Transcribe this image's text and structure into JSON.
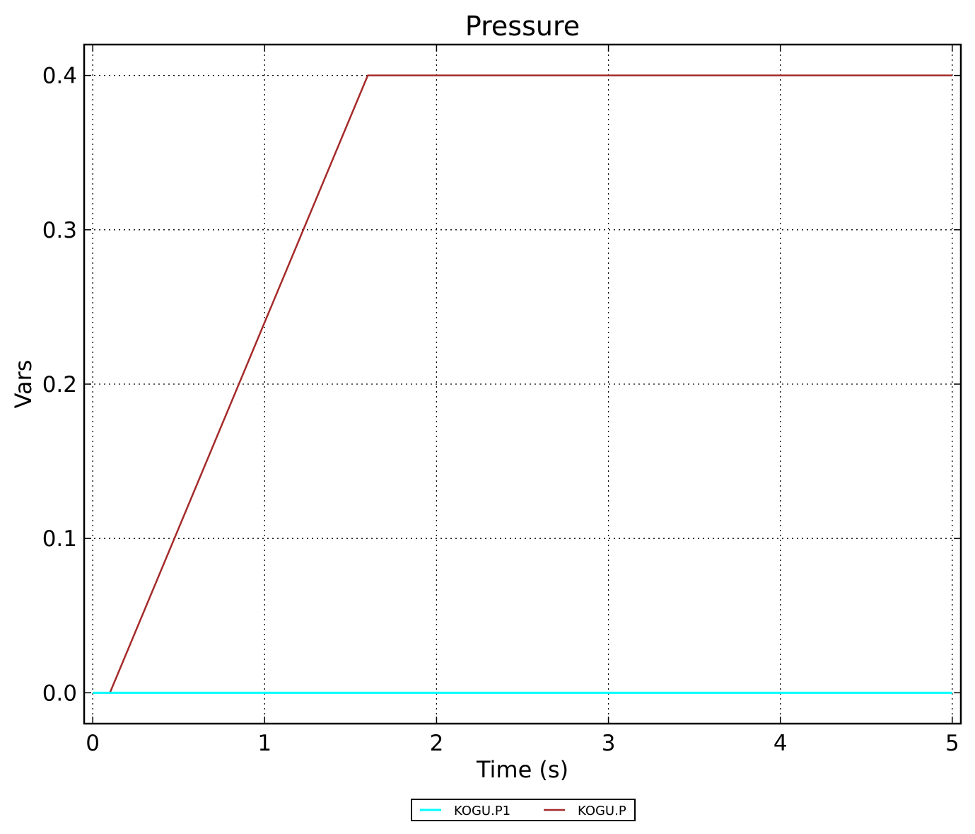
{
  "chart_data": {
    "type": "line",
    "title": "Pressure",
    "xlabel": "Time (s)",
    "ylabel": "Vars",
    "xlim": [
      -0.05,
      5.05
    ],
    "ylim": [
      -0.02,
      0.42
    ],
    "xticks": [
      0,
      1,
      2,
      3,
      4,
      5
    ],
    "xtick_labels": [
      "0",
      "1",
      "2",
      "3",
      "4",
      "5"
    ],
    "yticks": [
      0.0,
      0.1,
      0.2,
      0.3,
      0.4
    ],
    "ytick_labels": [
      "0.0",
      "0.1",
      "0.2",
      "0.3",
      "0.4"
    ],
    "grid": true,
    "legend_position": "bottom-center",
    "series": [
      {
        "name": "KOGU.P1",
        "color": "#00ffff",
        "x": [
          0,
          5
        ],
        "y": [
          0,
          0
        ]
      },
      {
        "name": "KOGU.P",
        "color": "#a52a2a",
        "x": [
          0,
          0.1,
          1.6,
          5
        ],
        "y": [
          0,
          0,
          0.4,
          0.4
        ]
      }
    ]
  }
}
